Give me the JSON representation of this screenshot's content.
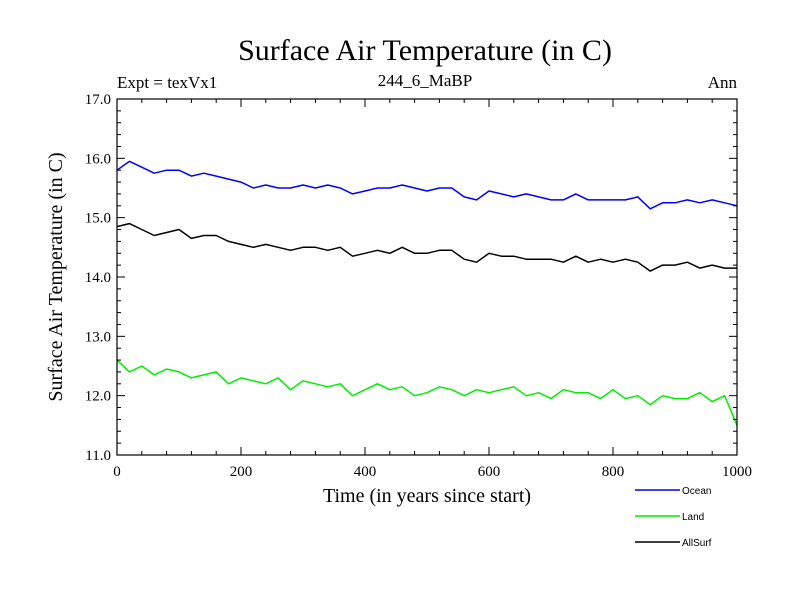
{
  "chart_data": {
    "type": "line",
    "title": "Surface Air Temperature (in C)",
    "subtitle_left": "Expt = texVx1",
    "subtitle_center": "244_6_MaBP",
    "subtitle_right": "Ann",
    "xlabel": "Time (in years since start)",
    "ylabel": "Surface Air Temperature (in C)",
    "xlim": [
      0,
      1000
    ],
    "ylim": [
      11.0,
      17.0
    ],
    "xticks": [
      0,
      200,
      400,
      600,
      800,
      1000
    ],
    "xtick_labels": [
      "0",
      "200",
      "400",
      "600",
      "800",
      "1000"
    ],
    "yticks": [
      11.0,
      12.0,
      13.0,
      14.0,
      15.0,
      16.0,
      17.0
    ],
    "ytick_labels": [
      "11.0",
      "12.0",
      "13.0",
      "14.0",
      "15.0",
      "16.0",
      "17.0"
    ],
    "legend_position": "bottom-right, below plot",
    "series": [
      {
        "name": "Ocean",
        "color": "#0000ff",
        "x": [
          0,
          20,
          40,
          60,
          80,
          100,
          120,
          140,
          160,
          180,
          200,
          220,
          240,
          260,
          280,
          300,
          320,
          340,
          360,
          380,
          400,
          420,
          440,
          460,
          480,
          500,
          520,
          540,
          560,
          580,
          600,
          620,
          640,
          660,
          680,
          700,
          720,
          740,
          760,
          780,
          800,
          820,
          840,
          860,
          880,
          900,
          920,
          940,
          960,
          980,
          1000
        ],
        "values": [
          15.8,
          15.95,
          15.85,
          15.75,
          15.8,
          15.8,
          15.7,
          15.75,
          15.7,
          15.65,
          15.6,
          15.5,
          15.55,
          15.5,
          15.5,
          15.55,
          15.5,
          15.55,
          15.5,
          15.4,
          15.45,
          15.5,
          15.5,
          15.55,
          15.5,
          15.45,
          15.5,
          15.5,
          15.35,
          15.3,
          15.45,
          15.4,
          15.35,
          15.4,
          15.35,
          15.3,
          15.3,
          15.4,
          15.3,
          15.3,
          15.3,
          15.3,
          15.35,
          15.15,
          15.25,
          15.25,
          15.3,
          15.25,
          15.3,
          15.25,
          15.2
        ]
      },
      {
        "name": "Land",
        "color": "#00ee00",
        "x": [
          0,
          20,
          40,
          60,
          80,
          100,
          120,
          140,
          160,
          180,
          200,
          220,
          240,
          260,
          280,
          300,
          320,
          340,
          360,
          380,
          400,
          420,
          440,
          460,
          480,
          500,
          520,
          540,
          560,
          580,
          600,
          620,
          640,
          660,
          680,
          700,
          720,
          740,
          760,
          780,
          800,
          820,
          840,
          860,
          880,
          900,
          920,
          940,
          960,
          980,
          1000
        ],
        "values": [
          12.6,
          12.4,
          12.5,
          12.35,
          12.45,
          12.4,
          12.3,
          12.35,
          12.4,
          12.2,
          12.3,
          12.25,
          12.2,
          12.3,
          12.1,
          12.25,
          12.2,
          12.15,
          12.2,
          12.0,
          12.1,
          12.2,
          12.1,
          12.15,
          12.0,
          12.05,
          12.15,
          12.1,
          12.0,
          12.1,
          12.05,
          12.1,
          12.15,
          12.0,
          12.05,
          11.95,
          12.1,
          12.05,
          12.05,
          11.95,
          12.1,
          11.95,
          12.0,
          11.85,
          12.0,
          11.95,
          11.95,
          12.05,
          11.9,
          12.0,
          11.5
        ]
      },
      {
        "name": "AllSurf",
        "color": "#000000",
        "x": [
          0,
          20,
          40,
          60,
          80,
          100,
          120,
          140,
          160,
          180,
          200,
          220,
          240,
          260,
          280,
          300,
          320,
          340,
          360,
          380,
          400,
          420,
          440,
          460,
          480,
          500,
          520,
          540,
          560,
          580,
          600,
          620,
          640,
          660,
          680,
          700,
          720,
          740,
          760,
          780,
          800,
          820,
          840,
          860,
          880,
          900,
          920,
          940,
          960,
          980,
          1000
        ],
        "values": [
          14.85,
          14.9,
          14.8,
          14.7,
          14.75,
          14.8,
          14.65,
          14.7,
          14.7,
          14.6,
          14.55,
          14.5,
          14.55,
          14.5,
          14.45,
          14.5,
          14.5,
          14.45,
          14.5,
          14.35,
          14.4,
          14.45,
          14.4,
          14.5,
          14.4,
          14.4,
          14.45,
          14.45,
          14.3,
          14.25,
          14.4,
          14.35,
          14.35,
          14.3,
          14.3,
          14.3,
          14.25,
          14.35,
          14.25,
          14.3,
          14.25,
          14.3,
          14.25,
          14.1,
          14.2,
          14.2,
          14.25,
          14.15,
          14.2,
          14.15,
          14.15
        ]
      }
    ]
  }
}
